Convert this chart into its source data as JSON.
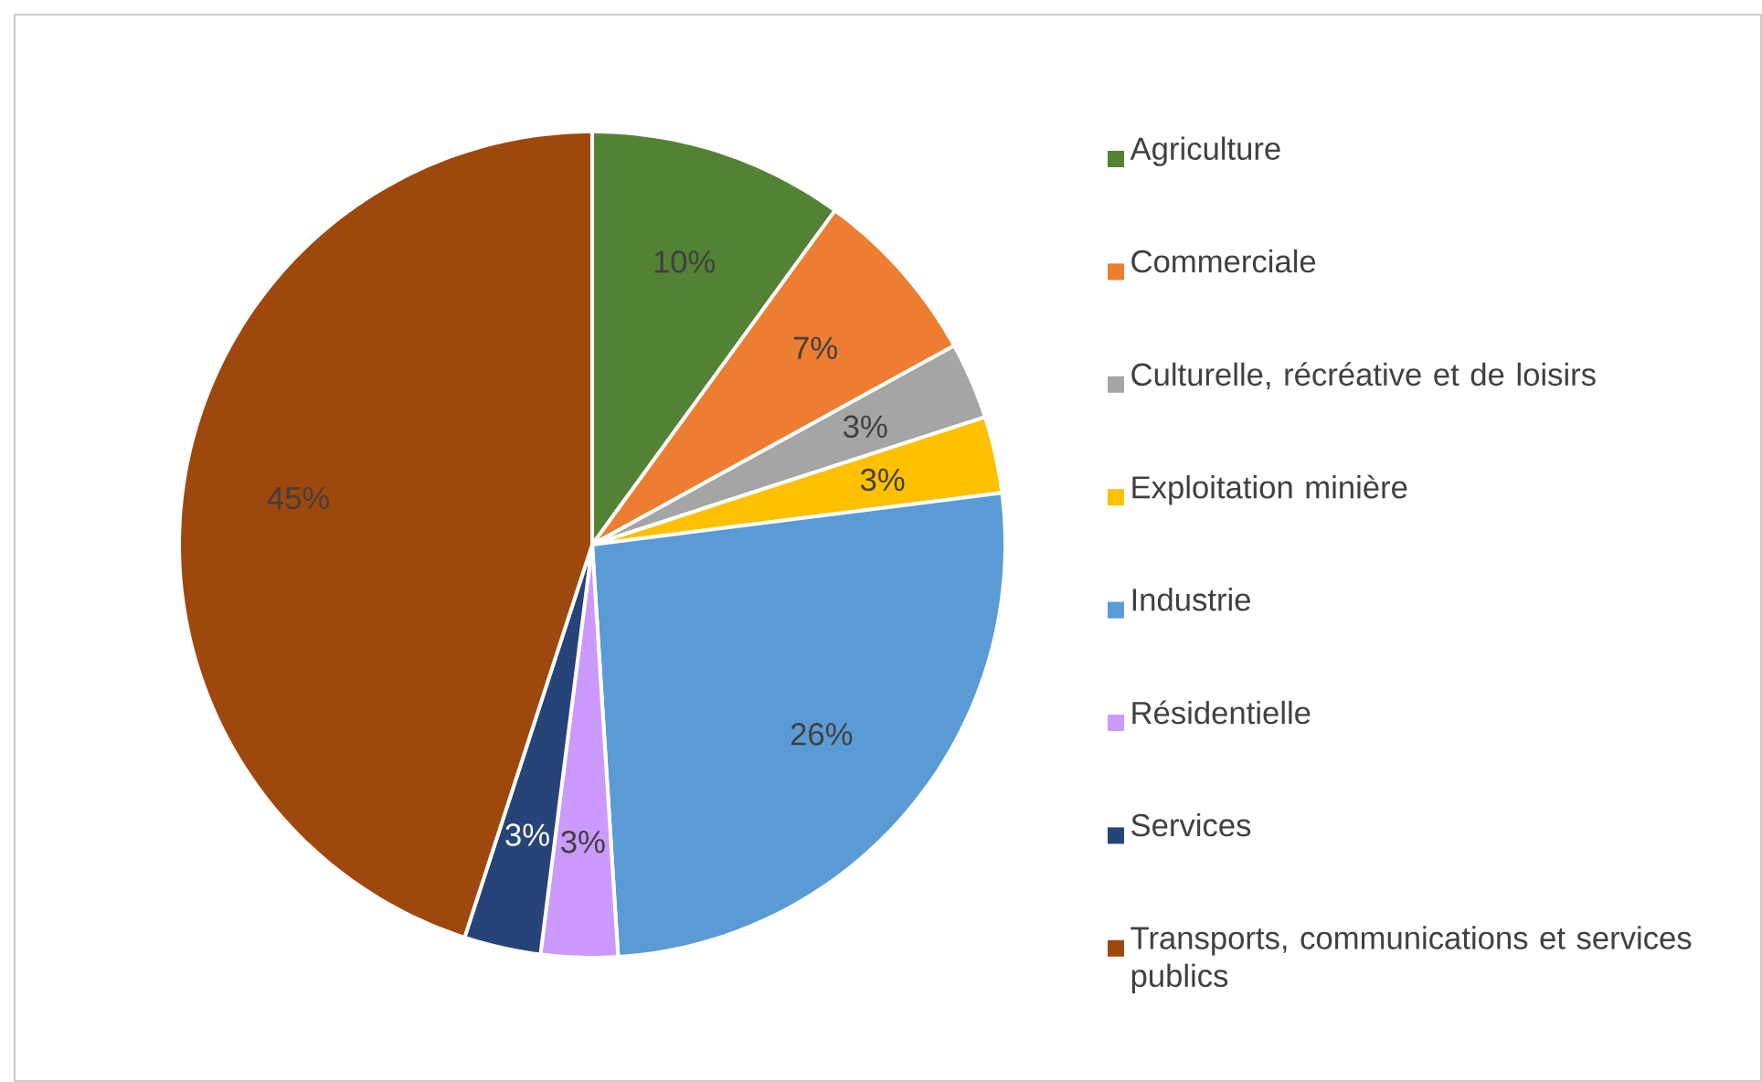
{
  "chart_data": {
    "type": "pie",
    "categories": [
      "Agriculture",
      "Commerciale",
      "Culturelle, récréative et de loisirs",
      "Exploitation minière",
      "Industrie",
      "Résidentielle",
      "Services",
      "Transports, communications et services publics"
    ],
    "values": [
      10,
      7,
      3,
      3,
      26,
      3,
      3,
      45
    ],
    "value_labels": [
      "10%",
      "7%",
      "3%",
      "3%",
      "26%",
      "3%",
      "3%",
      "45%"
    ],
    "colors": [
      "#548235",
      "#ed7d31",
      "#a5a5a5",
      "#ffc000",
      "#5b9bd5",
      "#cc99ff",
      "#264478",
      "#9e480e"
    ],
    "legend": "right"
  }
}
